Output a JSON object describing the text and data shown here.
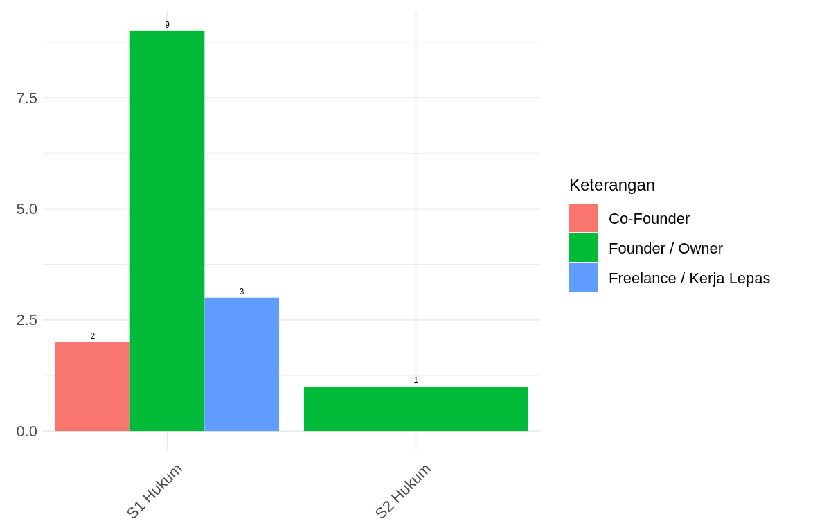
{
  "chart_data": {
    "type": "bar",
    "legend_title": "Keterangan",
    "categories": [
      "S1 Hukum",
      "S2 Hukum"
    ],
    "series": [
      {
        "name": "Co-Founder",
        "color": "#f8766d",
        "values": [
          2,
          null
        ]
      },
      {
        "name": "Founder / Owner",
        "color": "#00ba38",
        "values": [
          9,
          1
        ]
      },
      {
        "name": "Freelance / Kerja Lepas",
        "color": "#619cff",
        "values": [
          3,
          null
        ]
      }
    ],
    "ylim": [
      -0.45,
      9.45
    ],
    "yticks": [
      {
        "value": 0,
        "label": "0.0"
      },
      {
        "value": 1.25,
        "label": null
      },
      {
        "value": 2.5,
        "label": "2.5"
      },
      {
        "value": 3.75,
        "label": null
      },
      {
        "value": 5,
        "label": "5.0"
      },
      {
        "value": 6.25,
        "label": null
      },
      {
        "value": 7.5,
        "label": "7.5"
      },
      {
        "value": 8.75,
        "label": null
      }
    ],
    "grid": true,
    "legend": "right",
    "data_labels": true
  }
}
